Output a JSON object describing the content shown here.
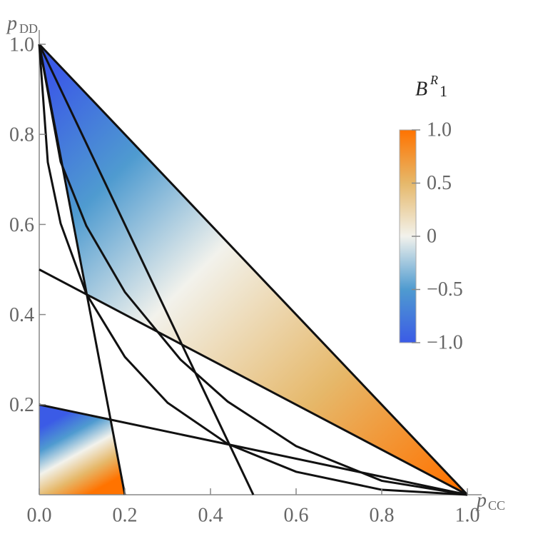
{
  "chart_data": {
    "type": "region",
    "xlabel": "p",
    "xlabel_sub": "CC",
    "ylabel": "p",
    "ylabel_sub": "DD",
    "xlim": [
      0,
      1
    ],
    "ylim": [
      0,
      1
    ],
    "xticks": [
      {
        "value": 0,
        "label": "0.0"
      },
      0.2,
      0.4,
      0.6,
      0.8,
      {
        "value": 1,
        "label": "1.0"
      }
    ],
    "yticks": [
      0.2,
      0.4,
      0.6,
      0.8,
      {
        "value": 1,
        "label": "1.0"
      }
    ],
    "regions": [
      {
        "x": [
          0,
          1,
          0.1111
        ],
        "y": [
          1,
          0,
          0.4444
        ]
      },
      {
        "x": [
          0,
          0.2,
          0.1667,
          0
        ],
        "y": [
          0,
          0,
          0.1667,
          0.2
        ]
      }
    ],
    "lines": [
      {
        "x": [
          0,
          0.2
        ],
        "y": [
          1,
          0
        ]
      },
      {
        "x": [
          0,
          0.5
        ],
        "y": [
          1,
          0
        ]
      },
      {
        "x": [
          0,
          1
        ],
        "y": [
          1,
          0
        ]
      },
      {
        "x": [
          0,
          1
        ],
        "y": [
          0.5,
          0
        ]
      },
      {
        "x": [
          0,
          1
        ],
        "y": [
          0.2,
          0
        ]
      }
    ],
    "curves": [
      {
        "x": [
          0,
          0.02,
          0.05,
          0.11,
          0.2,
          0.3,
          0.44,
          0.6,
          0.8,
          1
        ],
        "y": [
          1,
          0.738,
          0.602,
          0.446,
          0.306,
          0.204,
          0.113,
          0.051,
          0.011,
          0
        ]
      },
      {
        "x": [
          0,
          0.05,
          0.11,
          0.2,
          0.33,
          0.44,
          0.6,
          0.8,
          1
        ],
        "y": [
          1,
          0.739,
          0.597,
          0.45,
          0.3,
          0.207,
          0.108,
          0.031,
          0
        ]
      }
    ],
    "line_color": "#111111",
    "colorbar": {
      "title": "B",
      "title_sup": "R",
      "title_sub": "1",
      "lim": [
        -1,
        1
      ],
      "ticks": [
        {
          "value": 1,
          "label": "1.0"
        },
        0.5,
        0,
        {
          "value": -0.5,
          "label": "−0.5"
        },
        {
          "value": -1,
          "label": "−1.0"
        }
      ],
      "colors": [
        "#3b5be6",
        "#4f9bd0",
        "#f2f2ec",
        "#e6b86a",
        "#ff7300"
      ]
    }
  }
}
